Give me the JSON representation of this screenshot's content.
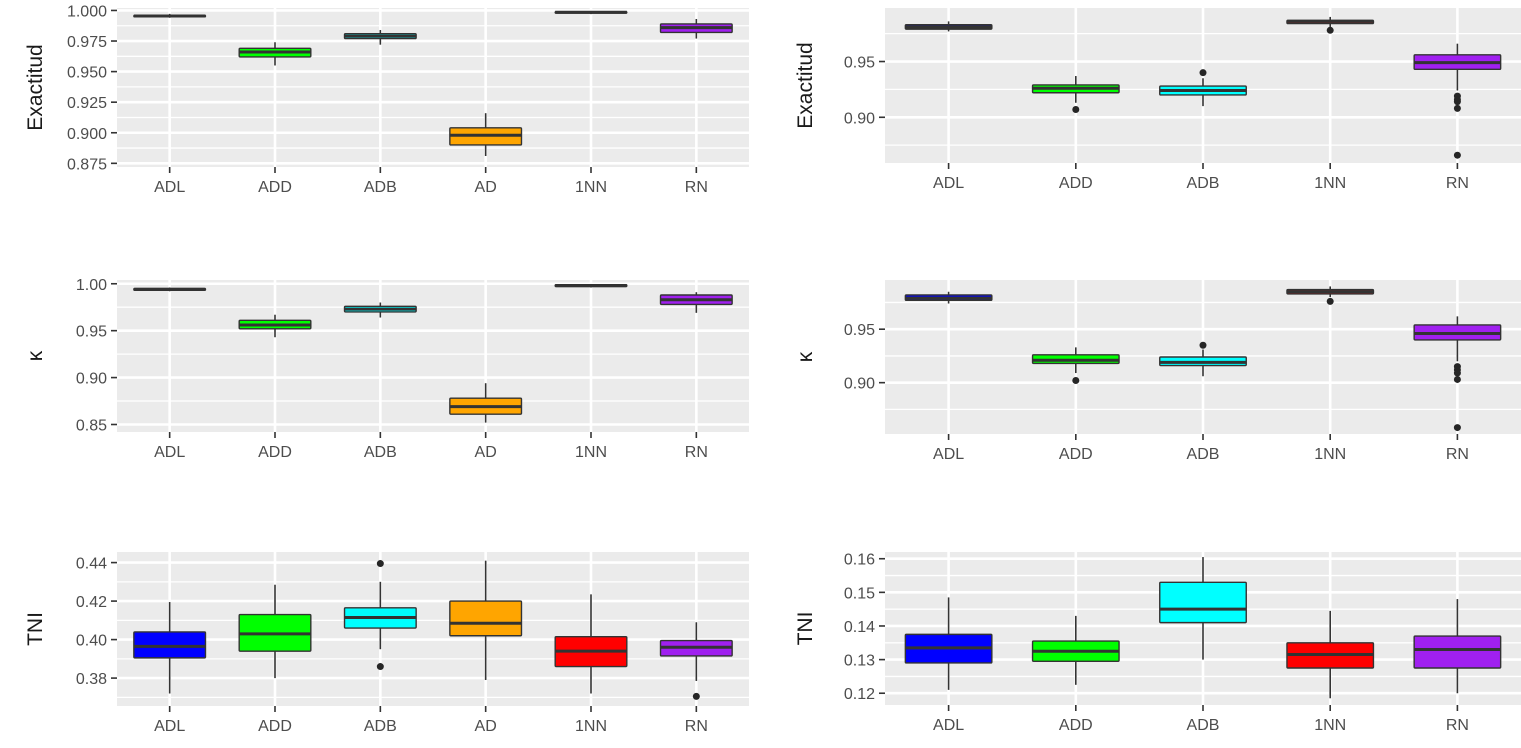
{
  "chart_data": [
    {
      "type": "boxplot",
      "ylabel": "Exactitud",
      "categories": [
        "ADL",
        "ADD",
        "ADB",
        "AD",
        "1NN",
        "RN"
      ],
      "colors": [
        "#0000ff",
        "#00ff00",
        "#00ffff",
        "#ffa500",
        "#ff0000",
        "#a020f0"
      ],
      "ylim": [
        0.872,
        1.002
      ],
      "yticks": [
        0.875,
        0.9,
        0.925,
        0.95,
        0.975,
        1.0
      ],
      "ytick_labels": [
        "0.875",
        "0.900",
        "0.925",
        "0.950",
        "0.975",
        "1.000"
      ],
      "boxes": [
        {
          "whislo": 0.994,
          "q1": 0.995,
          "med": 0.9955,
          "q3": 0.996,
          "whishi": 0.9972,
          "fliers": []
        },
        {
          "whislo": 0.955,
          "q1": 0.962,
          "med": 0.966,
          "q3": 0.969,
          "whishi": 0.974,
          "fliers": []
        },
        {
          "whislo": 0.972,
          "q1": 0.977,
          "med": 0.979,
          "q3": 0.981,
          "whishi": 0.984,
          "fliers": []
        },
        {
          "whislo": 0.881,
          "q1": 0.89,
          "med": 0.898,
          "q3": 0.904,
          "whishi": 0.916,
          "fliers": []
        },
        {
          "whislo": 0.997,
          "q1": 0.998,
          "med": 0.9985,
          "q3": 0.999,
          "whishi": 0.9995,
          "fliers": []
        },
        {
          "whislo": 0.977,
          "q1": 0.982,
          "med": 0.986,
          "q3": 0.989,
          "whishi": 0.993,
          "fliers": []
        }
      ]
    },
    {
      "type": "boxplot",
      "ylabel": "Exactitud",
      "categories": [
        "ADL",
        "ADD",
        "ADB",
        "1NN",
        "RN"
      ],
      "colors": [
        "#0000ff",
        "#00ff00",
        "#00ffff",
        "#ff0000",
        "#a020f0"
      ],
      "ylim": [
        0.859,
        0.998
      ],
      "yticks": [
        0.9,
        0.95
      ],
      "ytick_labels": [
        "0.90",
        "0.95"
      ],
      "boxes": [
        {
          "whislo": 0.977,
          "q1": 0.979,
          "med": 0.981,
          "q3": 0.983,
          "whishi": 0.986,
          "fliers": []
        },
        {
          "whislo": 0.913,
          "q1": 0.922,
          "med": 0.926,
          "q3": 0.929,
          "whishi": 0.937,
          "fliers": [
            0.907
          ]
        },
        {
          "whislo": 0.91,
          "q1": 0.92,
          "med": 0.924,
          "q3": 0.928,
          "whishi": 0.935,
          "fliers": [
            0.94
          ]
        },
        {
          "whislo": 0.981,
          "q1": 0.984,
          "med": 0.986,
          "q3": 0.987,
          "whishi": 0.99,
          "fliers": [
            0.978
          ]
        },
        {
          "whislo": 0.924,
          "q1": 0.943,
          "med": 0.949,
          "q3": 0.956,
          "whishi": 0.966,
          "fliers": [
            0.919,
            0.916,
            0.914,
            0.908,
            0.866
          ]
        }
      ]
    },
    {
      "type": "boxplot",
      "ylabel": "κ",
      "categories": [
        "ADL",
        "ADD",
        "ADB",
        "AD",
        "1NN",
        "RN"
      ],
      "colors": [
        "#0000ff",
        "#00ff00",
        "#00ffff",
        "#ffa500",
        "#ff0000",
        "#a020f0"
      ],
      "ylim": [
        0.842,
        1.004
      ],
      "yticks": [
        0.85,
        0.9,
        0.95,
        1.0
      ],
      "ytick_labels": [
        "0.85",
        "0.90",
        "0.95",
        "1.00"
      ],
      "boxes": [
        {
          "whislo": 0.992,
          "q1": 0.993,
          "med": 0.994,
          "q3": 0.995,
          "whishi": 0.996,
          "fliers": []
        },
        {
          "whislo": 0.943,
          "q1": 0.952,
          "med": 0.956,
          "q3": 0.961,
          "whishi": 0.967,
          "fliers": []
        },
        {
          "whislo": 0.964,
          "q1": 0.97,
          "med": 0.973,
          "q3": 0.976,
          "whishi": 0.98,
          "fliers": []
        },
        {
          "whislo": 0.852,
          "q1": 0.861,
          "med": 0.869,
          "q3": 0.878,
          "whishi": 0.894,
          "fliers": []
        },
        {
          "whislo": 0.996,
          "q1": 0.997,
          "med": 0.998,
          "q3": 0.999,
          "whishi": 0.9995,
          "fliers": []
        },
        {
          "whislo": 0.969,
          "q1": 0.978,
          "med": 0.983,
          "q3": 0.988,
          "whishi": 0.991,
          "fliers": []
        }
      ]
    },
    {
      "type": "boxplot",
      "ylabel": "κ",
      "categories": [
        "ADL",
        "ADD",
        "ADB",
        "1NN",
        "RN"
      ],
      "colors": [
        "#0000ff",
        "#00ff00",
        "#00ffff",
        "#ff0000",
        "#a020f0"
      ],
      "ylim": [
        0.852,
        0.996
      ],
      "yticks": [
        0.9,
        0.95
      ],
      "ytick_labels": [
        "0.90",
        "0.95"
      ],
      "boxes": [
        {
          "whislo": 0.974,
          "q1": 0.977,
          "med": 0.979,
          "q3": 0.982,
          "whishi": 0.985,
          "fliers": []
        },
        {
          "whislo": 0.909,
          "q1": 0.918,
          "med": 0.921,
          "q3": 0.926,
          "whishi": 0.933,
          "fliers": [
            0.902
          ]
        },
        {
          "whislo": 0.906,
          "q1": 0.916,
          "med": 0.919,
          "q3": 0.924,
          "whishi": 0.931,
          "fliers": [
            0.935
          ]
        },
        {
          "whislo": 0.98,
          "q1": 0.983,
          "med": 0.985,
          "q3": 0.987,
          "whishi": 0.99,
          "fliers": [
            0.976
          ]
        },
        {
          "whislo": 0.92,
          "q1": 0.94,
          "med": 0.946,
          "q3": 0.954,
          "whishi": 0.962,
          "fliers": [
            0.915,
            0.912,
            0.909,
            0.903,
            0.858
          ]
        }
      ]
    },
    {
      "type": "boxplot",
      "ylabel": "TNI",
      "categories": [
        "ADL",
        "ADD",
        "ADB",
        "AD",
        "1NN",
        "RN"
      ],
      "colors": [
        "#0000ff",
        "#00ff00",
        "#00ffff",
        "#ffa500",
        "#ff0000",
        "#a020f0"
      ],
      "ylim": [
        0.3655,
        0.4455
      ],
      "yticks": [
        0.38,
        0.4,
        0.42,
        0.44
      ],
      "ytick_labels": [
        "0.38",
        "0.40",
        "0.42",
        "0.44"
      ],
      "boxes": [
        {
          "whislo": 0.372,
          "q1": 0.3905,
          "med": 0.3965,
          "q3": 0.404,
          "whishi": 0.4195,
          "fliers": []
        },
        {
          "whislo": 0.38,
          "q1": 0.394,
          "med": 0.403,
          "q3": 0.413,
          "whishi": 0.4285,
          "fliers": []
        },
        {
          "whislo": 0.395,
          "q1": 0.406,
          "med": 0.4115,
          "q3": 0.4165,
          "whishi": 0.43,
          "fliers": [
            0.4395,
            0.386
          ]
        },
        {
          "whislo": 0.379,
          "q1": 0.402,
          "med": 0.4085,
          "q3": 0.42,
          "whishi": 0.441,
          "fliers": []
        },
        {
          "whislo": 0.372,
          "q1": 0.386,
          "med": 0.394,
          "q3": 0.4015,
          "whishi": 0.4235,
          "fliers": []
        },
        {
          "whislo": 0.3785,
          "q1": 0.3915,
          "med": 0.396,
          "q3": 0.3995,
          "whishi": 0.409,
          "fliers": [
            0.3705
          ]
        }
      ]
    },
    {
      "type": "boxplot",
      "ylabel": "TNI",
      "categories": [
        "ADL",
        "ADD",
        "ADB",
        "1NN",
        "RN"
      ],
      "colors": [
        "#0000ff",
        "#00ff00",
        "#00ffff",
        "#ff0000",
        "#a020f0"
      ],
      "ylim": [
        0.1165,
        0.162
      ],
      "yticks": [
        0.12,
        0.13,
        0.14,
        0.15,
        0.16
      ],
      "ytick_labels": [
        "0.12",
        "0.13",
        "0.14",
        "0.15",
        "0.16"
      ],
      "boxes": [
        {
          "whislo": 0.121,
          "q1": 0.129,
          "med": 0.1335,
          "q3": 0.1375,
          "whishi": 0.1485,
          "fliers": []
        },
        {
          "whislo": 0.1225,
          "q1": 0.1295,
          "med": 0.1325,
          "q3": 0.1355,
          "whishi": 0.143,
          "fliers": []
        },
        {
          "whislo": 0.13,
          "q1": 0.141,
          "med": 0.145,
          "q3": 0.153,
          "whishi": 0.1605,
          "fliers": []
        },
        {
          "whislo": 0.1185,
          "q1": 0.1275,
          "med": 0.1315,
          "q3": 0.135,
          "whishi": 0.1445,
          "fliers": []
        },
        {
          "whislo": 0.12,
          "q1": 0.1275,
          "med": 0.133,
          "q3": 0.137,
          "whishi": 0.148,
          "fliers": []
        }
      ]
    }
  ]
}
